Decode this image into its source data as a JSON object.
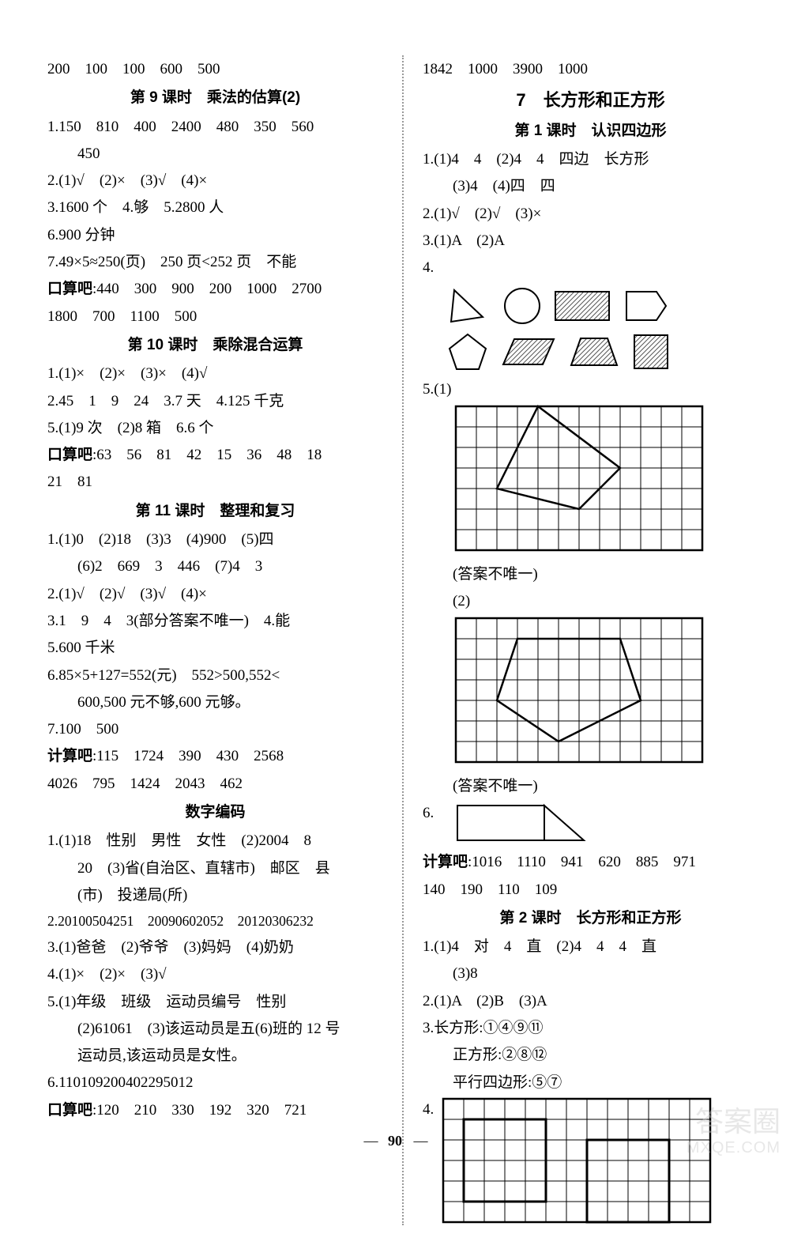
{
  "pageNumber": "90",
  "watermark": {
    "line1": "答案圈",
    "line2": "MXQE.COM"
  },
  "left": {
    "l0": "200　100　100　600　500",
    "h9": "第 9 课时　乘法的估算(2)",
    "l9_1": "1.150　810　400　2400　480　350　560",
    "l9_1b": "450",
    "l9_2": "2.(1)√　(2)×　(3)√　(4)×",
    "l9_3": "3.1600 个　4.够　5.2800 人",
    "l9_4": "6.900 分钟",
    "l9_5": "7.49×5≈250(页)　250 页<252 页　不能",
    "l9_6a": "口算吧",
    "l9_6b": ":440　300　900　200　1000　2700",
    "l9_7": "1800　700　1100　500",
    "h10": "第 10 课时　乘除混合运算",
    "l10_1": "1.(1)×　(2)×　(3)×　(4)√",
    "l10_2": "2.45　1　9　24　3.7 天　4.125 千克",
    "l10_3": "5.(1)9 次　(2)8 箱　6.6 个",
    "l10_4a": "口算吧",
    "l10_4b": ":63　56　81　42　15　36　48　18",
    "l10_5": "21　81",
    "h11": "第 11 课时　整理和复习",
    "l11_1": "1.(1)0　(2)18　(3)3　(4)900　(5)四",
    "l11_1b": "(6)2　669　3　446　(7)4　3",
    "l11_2": "2.(1)√　(2)√　(3)√　(4)×",
    "l11_3": "3.1　9　4　3(部分答案不唯一)　4.能",
    "l11_4": "5.600 千米",
    "l11_5": "6.85×5+127=552(元)　552>500,552<",
    "l11_5b": "600,500 元不够,600 元够。",
    "l11_6": "7.100　500",
    "l11_7a": "计算吧",
    "l11_7b": ":115　1724　390　430　2568",
    "l11_8": "4026　795　1424　2043　462",
    "hdc": "数字编码",
    "ld_1": "1.(1)18　性别　男性　女性　(2)2004　8",
    "ld_1b": "20　(3)省(自治区、直辖市)　邮区　县",
    "ld_1c": "(市)　投递局(所)",
    "ld_2": "2.20100504251　20090602052　20120306232",
    "ld_3": "3.(1)爸爸　(2)爷爷　(3)妈妈　(4)奶奶",
    "ld_4": "4.(1)×　(2)×　(3)√",
    "ld_5": "5.(1)年级　班级　运动员编号　性别",
    "ld_5b": "(2)61061　(3)该运动员是五(6)班的 12 号",
    "ld_5c": "运动员,该运动员是女性。",
    "ld_6": "6.110109200402295012",
    "ld_7a": "口算吧",
    "ld_7b": ":120　210　330　192　320　721"
  },
  "right": {
    "r0": "1842　1000　3900　1000",
    "bh7": "7　长方形和正方形",
    "h1": "第 1 课时　认识四边形",
    "r1_1": "1.(1)4　4　(2)4　4　四边　长方形",
    "r1_1b": "(3)4　(4)四　四",
    "r1_2": "2.(1)√　(2)√　(3)×",
    "r1_3": "3.(1)A　(2)A",
    "r1_4": "4.",
    "r1_5": "5.(1)",
    "r1_note1": "(答案不唯一)",
    "r1_5b": "(2)",
    "r1_note2": "(答案不唯一)",
    "r1_6": "6.",
    "r1_7a": "计算吧",
    "r1_7b": ":1016　1110　941　620　885　971",
    "r1_8": "140　190　110　109",
    "h2": "第 2 课时　长方形和正方形",
    "r2_1": "1.(1)4　对　4　直　(2)4　4　4　直",
    "r2_1b": "(3)8",
    "r2_2": "2.(1)A　(2)B　(3)A",
    "r2_3": "3.长方形:①④⑨⑪",
    "r2_3b": "正方形:②⑧⑫",
    "r2_3c": "平行四边形:⑤⑦",
    "r2_4": "4."
  },
  "style": {
    "gridCellPx": 26,
    "gridBorderColor": "#000000",
    "shapeFillHatched": "#9aa0a6",
    "shapeStrokeWidth": 2
  },
  "shapesRow1": [
    {
      "name": "triangle",
      "filled": false
    },
    {
      "name": "circle",
      "filled": false
    },
    {
      "name": "hatched-rect",
      "filled": true
    },
    {
      "name": "pentagon-irreg",
      "filled": false
    }
  ],
  "shapesRow2": [
    {
      "name": "pentagon-reg",
      "filled": false
    },
    {
      "name": "hatched-parallelogram",
      "filled": true
    },
    {
      "name": "hatched-trapezoid",
      "filled": true
    },
    {
      "name": "hatched-square",
      "filled": true
    }
  ],
  "grid5_1": {
    "cols": 12,
    "rows": 7,
    "poly": [
      [
        4,
        0
      ],
      [
        8,
        3
      ],
      [
        6,
        5
      ],
      [
        2,
        4
      ]
    ]
  },
  "grid5_2": {
    "cols": 12,
    "rows": 7,
    "poly": [
      [
        3,
        1
      ],
      [
        8,
        1
      ],
      [
        9,
        4
      ],
      [
        5,
        6
      ],
      [
        2,
        4
      ]
    ]
  },
  "grid4": {
    "cols": 13,
    "rows": 6,
    "rect1": [
      1,
      1,
      5,
      5
    ],
    "rect2": [
      7,
      2,
      11,
      6
    ]
  }
}
